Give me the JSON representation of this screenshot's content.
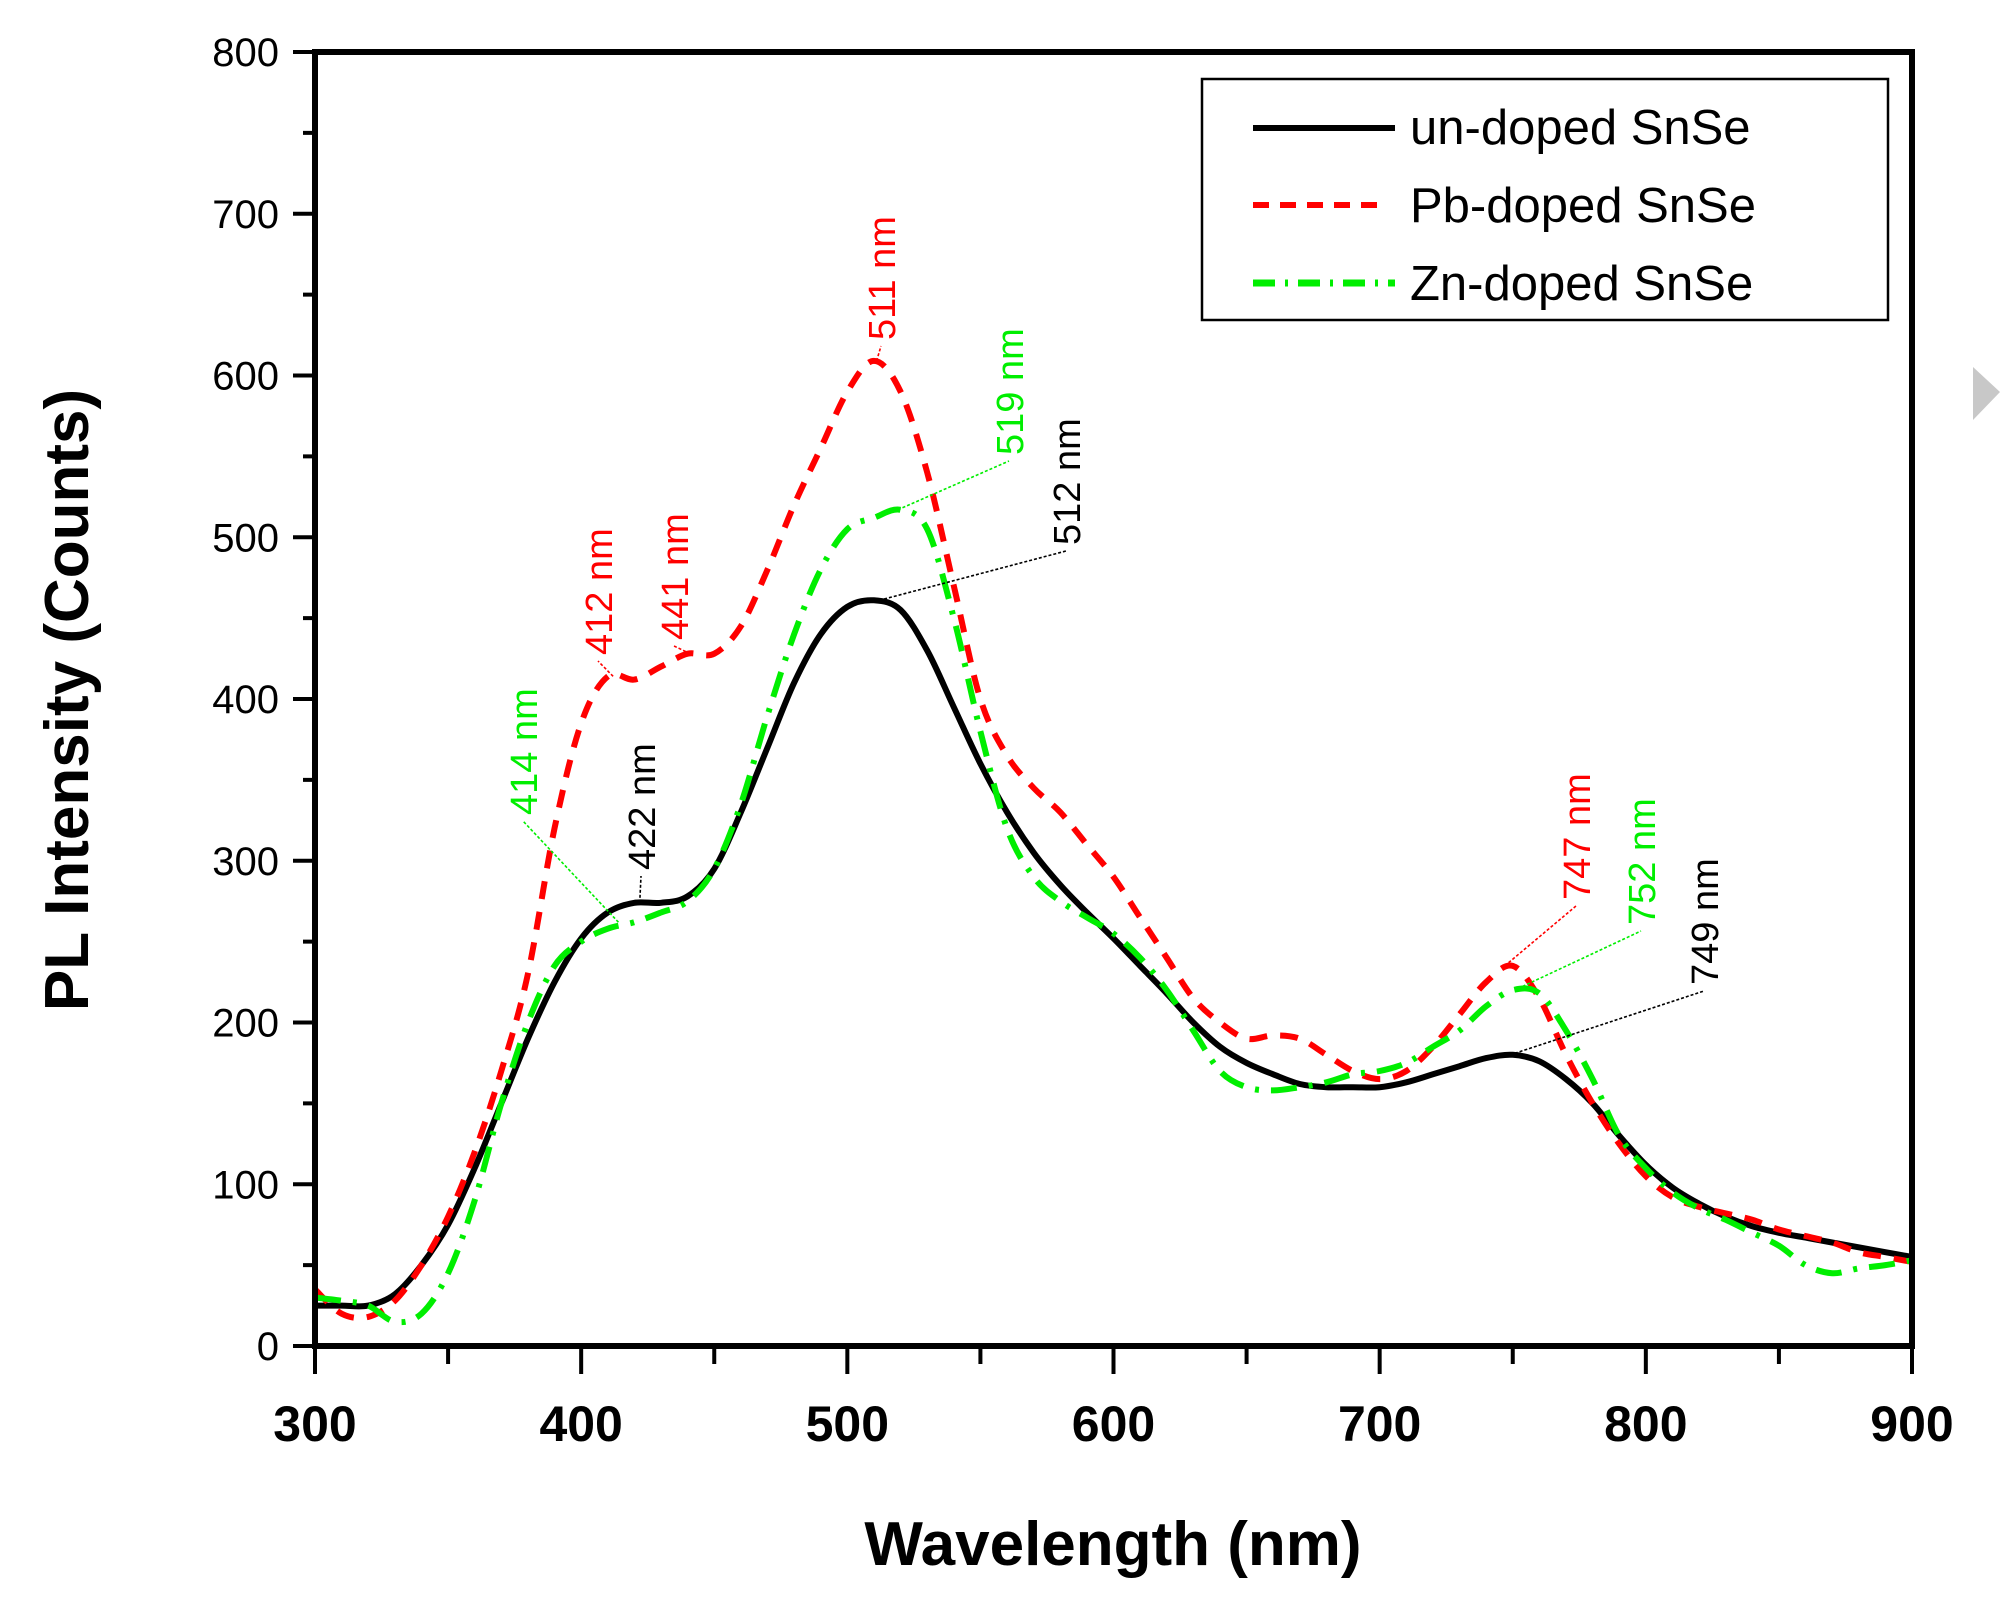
{
  "chart_data": {
    "type": "line",
    "title": "",
    "xlabel": "Wavelength (nm)",
    "ylabel": "PL Intensity (Counts)",
    "xlim": [
      300,
      900
    ],
    "ylim": [
      0,
      800
    ],
    "xticks": [
      300,
      400,
      500,
      600,
      700,
      800,
      900
    ],
    "xtick_labels": [
      "300",
      "400",
      "500",
      "600",
      "700",
      "800",
      "900"
    ],
    "yticks": [
      0,
      100,
      200,
      300,
      400,
      500,
      600,
      700,
      800
    ],
    "ytick_labels": [
      "0",
      "100",
      "200",
      "300",
      "400",
      "500",
      "600",
      "700",
      "800"
    ],
    "grid": false,
    "legend_position": "top-right",
    "x": [
      300,
      310,
      320,
      330,
      340,
      350,
      360,
      370,
      380,
      390,
      400,
      410,
      420,
      430,
      440,
      450,
      460,
      470,
      480,
      490,
      500,
      510,
      520,
      530,
      540,
      550,
      560,
      570,
      580,
      590,
      600,
      610,
      620,
      630,
      640,
      650,
      660,
      670,
      680,
      690,
      700,
      710,
      720,
      730,
      740,
      750,
      760,
      770,
      780,
      790,
      800,
      810,
      820,
      830,
      840,
      850,
      860,
      870,
      880,
      890,
      900
    ],
    "series": [
      {
        "name": "un-doped SnSe",
        "color": "#000000",
        "style": "solid",
        "values": [
          25,
          25,
          25,
          32,
          50,
          75,
          110,
          150,
          190,
          225,
          252,
          268,
          274,
          274,
          278,
          295,
          330,
          370,
          410,
          440,
          457,
          461,
          455,
          430,
          395,
          360,
          330,
          305,
          285,
          268,
          252,
          235,
          218,
          200,
          185,
          175,
          168,
          162,
          160,
          160,
          160,
          163,
          168,
          173,
          178,
          180,
          176,
          165,
          150,
          130,
          112,
          98,
          88,
          80,
          74,
          70,
          67,
          64,
          61,
          58,
          55
        ]
      },
      {
        "name": "Pb-doped SnSe",
        "color": "#ff0000",
        "style": "dashed",
        "values": [
          35,
          20,
          18,
          28,
          50,
          80,
          120,
          170,
          230,
          320,
          385,
          414,
          412,
          420,
          428,
          428,
          445,
          480,
          520,
          555,
          590,
          609,
          590,
          540,
          470,
          400,
          365,
          345,
          330,
          310,
          290,
          265,
          240,
          215,
          200,
          190,
          192,
          190,
          180,
          170,
          165,
          170,
          185,
          205,
          225,
          235,
          215,
          180,
          150,
          125,
          105,
          92,
          86,
          82,
          78,
          72,
          68,
          64,
          58,
          55,
          52
        ]
      },
      {
        "name": "Zn-doped SnSe",
        "color": "#00ee00",
        "style": "dashdot",
        "values": [
          30,
          28,
          25,
          15,
          20,
          45,
          90,
          150,
          200,
          235,
          250,
          258,
          262,
          268,
          275,
          295,
          335,
          390,
          440,
          480,
          505,
          512,
          517,
          505,
          450,
          380,
          320,
          290,
          275,
          265,
          255,
          240,
          220,
          195,
          170,
          160,
          158,
          160,
          163,
          168,
          170,
          175,
          185,
          195,
          210,
          220,
          218,
          195,
          165,
          130,
          110,
          95,
          85,
          78,
          70,
          62,
          50,
          45,
          48,
          50,
          53
        ]
      }
    ],
    "annotations": [
      {
        "text": "414 nm",
        "color": "#00ee00",
        "series": "Zn-doped SnSe",
        "x": 414,
        "y": 262
      },
      {
        "text": "412 nm",
        "color": "#ff0000",
        "series": "Pb-doped SnSe",
        "x": 412,
        "y": 414
      },
      {
        "text": "441 nm",
        "color": "#ff0000",
        "series": "Pb-doped SnSe",
        "x": 441,
        "y": 428
      },
      {
        "text": "422 nm",
        "color": "#000000",
        "series": "un-doped SnSe",
        "x": 422,
        "y": 274
      },
      {
        "text": "511 nm",
        "color": "#ff0000",
        "series": "Pb-doped SnSe",
        "x": 511,
        "y": 609
      },
      {
        "text": "519 nm",
        "color": "#00ee00",
        "series": "Zn-doped SnSe",
        "x": 519,
        "y": 517
      },
      {
        "text": "512 nm",
        "color": "#000000",
        "series": "un-doped SnSe",
        "x": 512,
        "y": 461
      },
      {
        "text": "747 nm",
        "color": "#ff0000",
        "series": "Pb-doped SnSe",
        "x": 747,
        "y": 235
      },
      {
        "text": "752 nm",
        "color": "#00ee00",
        "series": "Zn-doped SnSe",
        "x": 752,
        "y": 221
      },
      {
        "text": "749 nm",
        "color": "#000000",
        "series": "un-doped SnSe",
        "x": 749,
        "y": 180
      }
    ]
  },
  "nav": {
    "next_icon": "triangle-right-icon"
  }
}
